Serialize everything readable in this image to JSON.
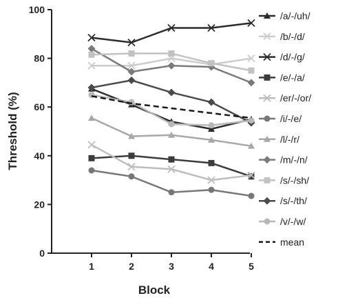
{
  "chart_data": {
    "type": "line",
    "xlabel": "Block",
    "ylabel": "Threshold (%)",
    "x": [
      1,
      2,
      3,
      4,
      5
    ],
    "xlim": [
      0,
      5.5
    ],
    "ylim": [
      0,
      100
    ],
    "yticks": [
      0,
      20,
      40,
      60,
      80,
      100
    ],
    "grid": false,
    "legend_position": "right",
    "series": [
      {
        "name": "/a/-/uh/",
        "values": [
          67.5,
          61,
          54,
          51,
          55
        ],
        "color": "#2b2b2b",
        "marker": "triangle",
        "dash": false
      },
      {
        "name": "/b/-/d/",
        "values": [
          77,
          77,
          80,
          77.5,
          80
        ],
        "color": "#cccccc",
        "marker": "x",
        "dash": false
      },
      {
        "name": "/d/-/g/",
        "values": [
          88.5,
          86.5,
          92.5,
          92.5,
          94.5
        ],
        "color": "#2b2b2b",
        "marker": "x",
        "dash": false
      },
      {
        "name": "/e/-/a/",
        "values": [
          39,
          40,
          38.5,
          37,
          31.5
        ],
        "color": "#3c3c3c",
        "marker": "square",
        "dash": false
      },
      {
        "name": "/er/-/or/",
        "values": [
          44.5,
          35.5,
          34.5,
          30,
          32
        ],
        "color": "#bdbdbd",
        "marker": "x",
        "dash": false
      },
      {
        "name": "/i/-/e/",
        "values": [
          34,
          31.5,
          25,
          26,
          23.5
        ],
        "color": "#777777",
        "marker": "circle",
        "dash": false
      },
      {
        "name": "/l/-/r/",
        "values": [
          55.5,
          48,
          48.5,
          46.5,
          44
        ],
        "color": "#a8a8a8",
        "marker": "triangle",
        "dash": false
      },
      {
        "name": "/m/-/n/",
        "values": [
          84,
          74.5,
          77,
          76.5,
          70
        ],
        "color": "#7a7a7a",
        "marker": "diamond",
        "dash": false
      },
      {
        "name": "/s/-/sh/",
        "values": [
          81.5,
          82,
          82,
          78,
          75
        ],
        "color": "#c2c2c2",
        "marker": "square",
        "dash": false
      },
      {
        "name": "/s/-/th/",
        "values": [
          68,
          71,
          66,
          62,
          53.5
        ],
        "color": "#4a4a4a",
        "marker": "diamond",
        "dash": false
      },
      {
        "name": "/v/-/w/",
        "values": [
          65,
          62,
          53,
          52.5,
          54.5
        ],
        "color": "#b8b8b8",
        "marker": "circle",
        "dash": false
      },
      {
        "name": "mean",
        "values": [
          64.5,
          61.5,
          59.5,
          57.5,
          55.5
        ],
        "color": "#1a1a1a",
        "marker": "none",
        "dash": true
      }
    ]
  }
}
